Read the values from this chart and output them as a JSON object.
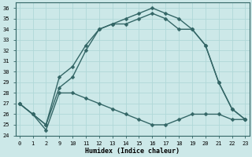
{
  "xlabel": "Humidex (Indice chaleur)",
  "bg_color": "#cce8e8",
  "grid_color": "#b0d8d8",
  "line_color": "#336666",
  "x_labels": [
    "0",
    "1",
    "2",
    "9",
    "10",
    "11",
    "12",
    "13",
    "14",
    "15",
    "16",
    "17",
    "18",
    "19",
    "20",
    "21",
    "22",
    "23"
  ],
  "ylim": [
    24,
    36.5
  ],
  "yticks": [
    24,
    25,
    26,
    27,
    28,
    29,
    30,
    31,
    32,
    33,
    34,
    35,
    36
  ],
  "line1_y": [
    27.0,
    26.0,
    24.5,
    28.0,
    28.0,
    27.5,
    27.0,
    26.5,
    26.0,
    25.5,
    25.0,
    25.0,
    25.5,
    26.0,
    26.0,
    26.0,
    25.5,
    25.5
  ],
  "line2_y": [
    27.0,
    26.0,
    25.0,
    29.5,
    30.5,
    32.5,
    34.0,
    34.5,
    35.0,
    35.5,
    36.0,
    35.5,
    35.0,
    34.0,
    32.5,
    29.0,
    26.5,
    25.5
  ],
  "line3_y": [
    27.0,
    26.0,
    25.0,
    28.5,
    29.5,
    32.0,
    34.0,
    34.5,
    34.5,
    35.0,
    35.5,
    35.0,
    34.0,
    34.0,
    32.5,
    29.0,
    26.5,
    25.5
  ],
  "marker": "D",
  "marker_size": 2.5,
  "line_width": 1.0
}
